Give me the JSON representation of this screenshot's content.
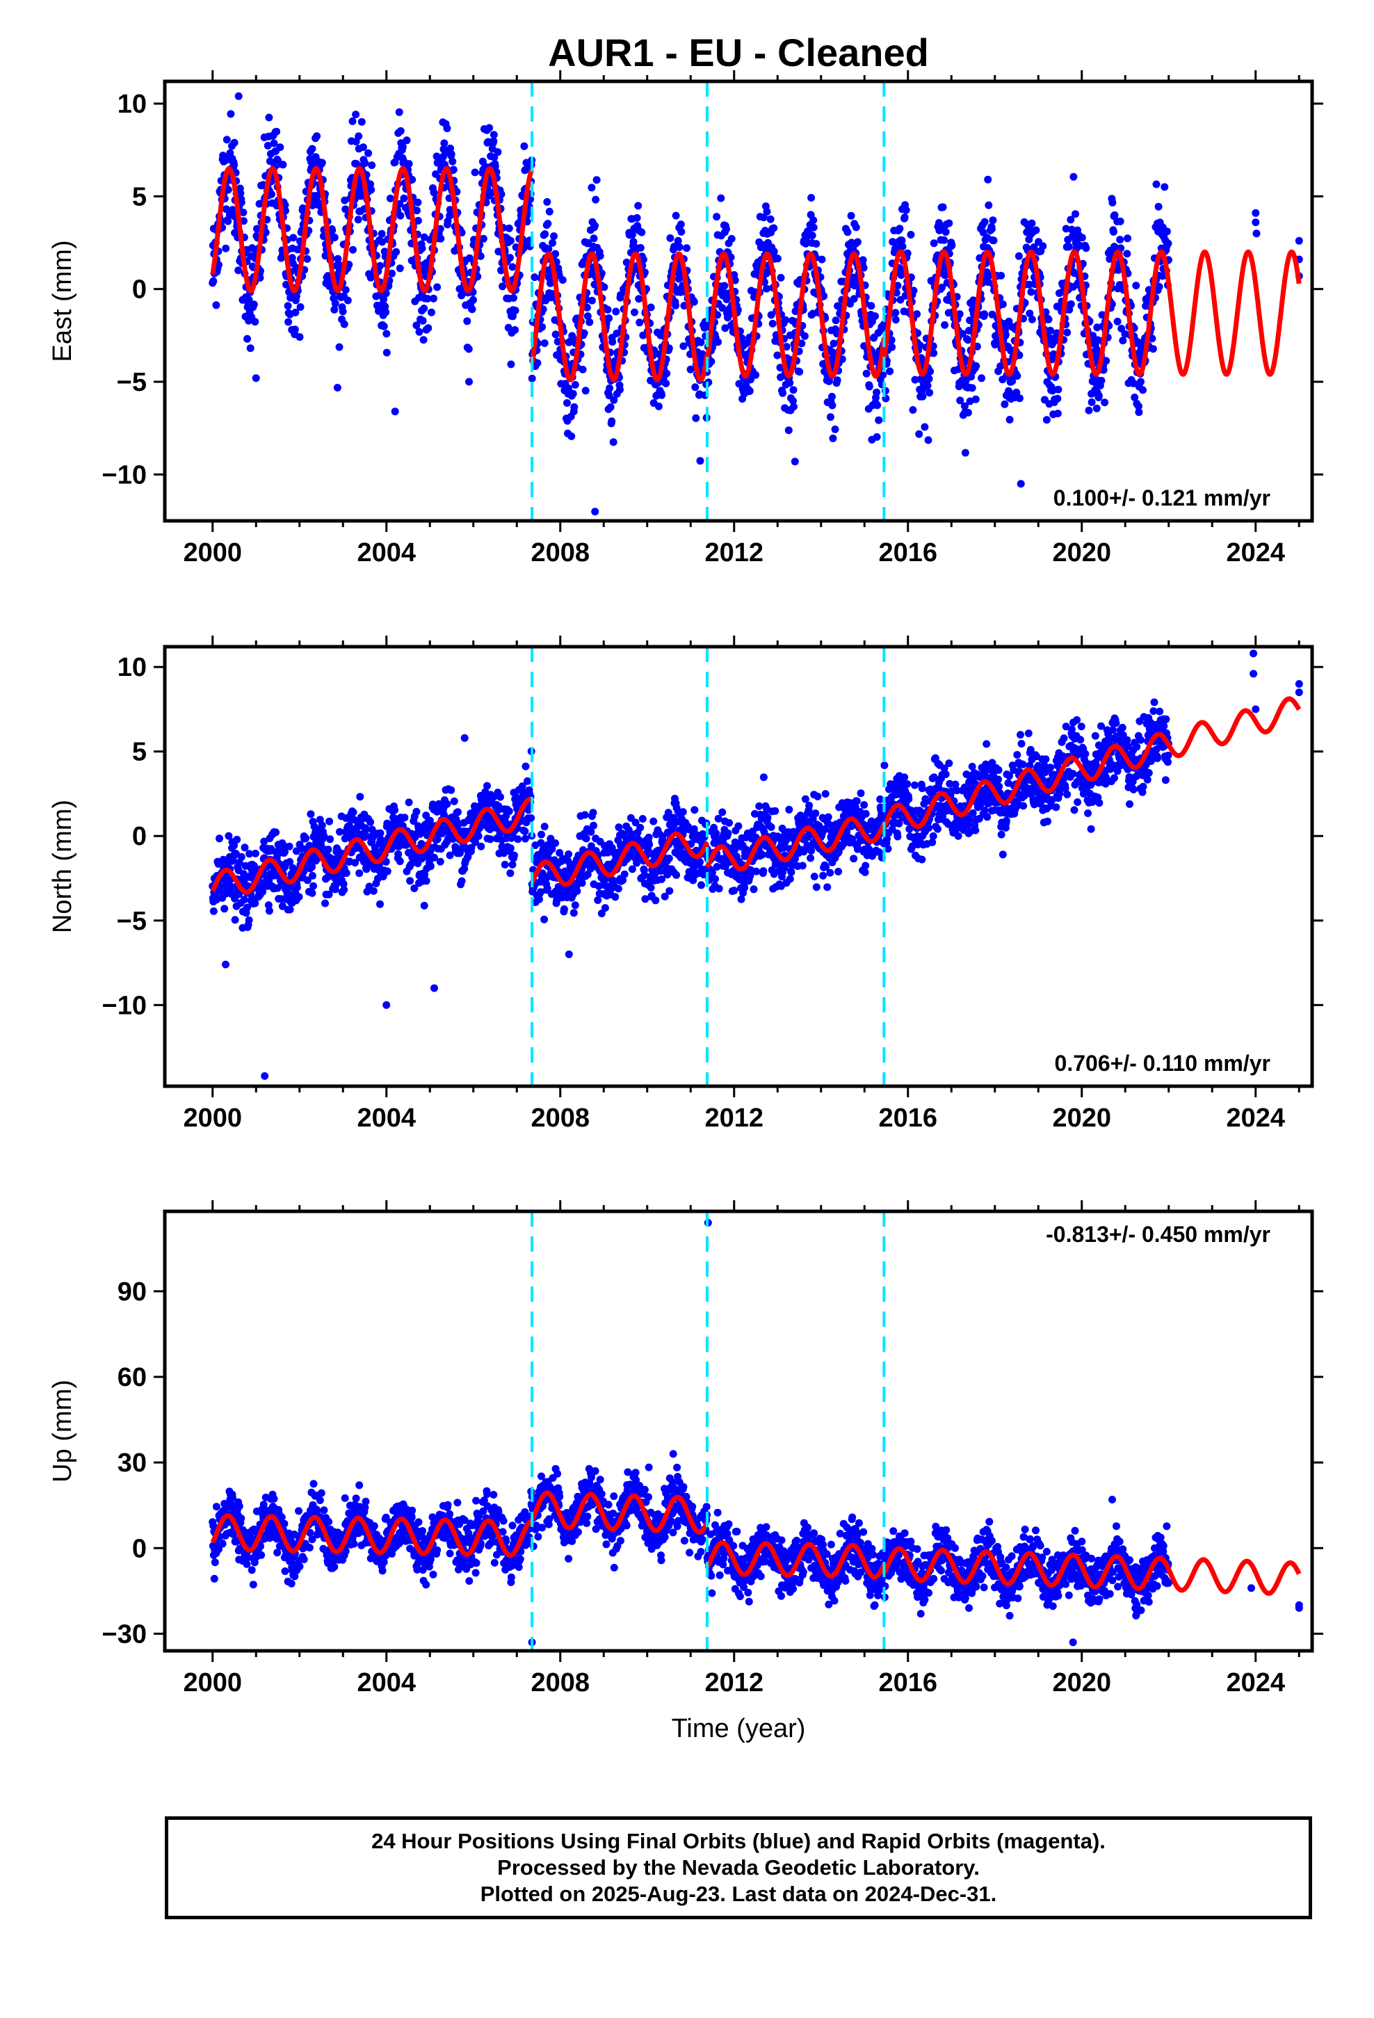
{
  "title": "AUR1  - EU - Cleaned",
  "footer": {
    "line1": "24 Hour Positions Using Final Orbits (blue) and Rapid Orbits (magenta).",
    "line2": "Processed by the Nevada Geodetic Laboratory.",
    "line3": "Plotted on 2025-Aug-23. Last data on 2024-Dec-31."
  },
  "colors": {
    "data": "#0000ff",
    "model": "#ff0000",
    "steps": "#00e5ff",
    "frame": "#000000"
  },
  "chart_data": [
    {
      "type": "scatter",
      "component": "east",
      "ylabel": "East (mm)",
      "xlabel": "",
      "xlim": [
        1998.9,
        2025.3
      ],
      "ylim": [
        -12.5,
        11.2
      ],
      "xticks": [
        2000,
        2004,
        2008,
        2012,
        2016,
        2020,
        2024
      ],
      "yticks": [
        -10,
        -5,
        0,
        5,
        10
      ],
      "rate_text": "0.100+/- 0.121 mm/yr",
      "rate_position": "bottom-right",
      "step_lines": [
        2007.35,
        2011.38,
        2015.45
      ],
      "data_start": 2000.0,
      "data_end": 2022.0,
      "late_points": [
        {
          "x": 2024.0,
          "y": 4.1
        },
        {
          "x": 2024.0,
          "y": 3.6
        },
        {
          "x": 2024.02,
          "y": 3.0
        },
        {
          "x": 2025.0,
          "y": 2.6
        },
        {
          "x": 2025.0,
          "y": 1.6
        },
        {
          "x": 2025.0,
          "y": 0.7
        }
      ],
      "model": {
        "segments": [
          {
            "x0": 2000.0,
            "x1": 2007.35,
            "offset": 3.2,
            "rate": 0.0,
            "amp": 3.3,
            "phase_yr": 0.38
          },
          {
            "x0": 2007.35,
            "x1": 2011.38,
            "offset": -1.5,
            "rate": 0.0,
            "amp": 3.4,
            "phase_yr": 0.38
          },
          {
            "x0": 2011.38,
            "x1": 2015.45,
            "offset": -1.4,
            "rate": 0.0,
            "amp": 3.3,
            "phase_yr": 0.38
          },
          {
            "x0": 2015.45,
            "x1": 2025.0,
            "offset": -1.3,
            "rate": 0.0,
            "amp": 3.3,
            "phase_yr": 0.38
          }
        ]
      },
      "scatter_sigma": 1.5,
      "outliers": [
        {
          "x": 2000.6,
          "y": 10.4
        },
        {
          "x": 2008.8,
          "y": -12.0
        },
        {
          "x": 2004.2,
          "y": -6.6
        },
        {
          "x": 2013.4,
          "y": -9.3
        },
        {
          "x": 2018.6,
          "y": -10.5
        },
        {
          "x": 2001.0,
          "y": -4.8
        },
        {
          "x": 2005.9,
          "y": -5.0
        }
      ]
    },
    {
      "type": "scatter",
      "component": "north",
      "ylabel": "North (mm)",
      "xlabel": "",
      "xlim": [
        1998.9,
        2025.3
      ],
      "ylim": [
        -14.8,
        11.2
      ],
      "xticks": [
        2000,
        2004,
        2008,
        2012,
        2016,
        2020,
        2024
      ],
      "yticks": [
        -10,
        -5,
        0,
        5,
        10
      ],
      "rate_text": "0.706+/- 0.110 mm/yr",
      "rate_position": "bottom-right",
      "step_lines": [
        2007.35,
        2011.38,
        2015.45
      ],
      "data_start": 2000.0,
      "data_end": 2022.0,
      "late_points": [
        {
          "x": 2023.95,
          "y": 10.8
        },
        {
          "x": 2023.95,
          "y": 9.6
        },
        {
          "x": 2024.0,
          "y": 7.5
        },
        {
          "x": 2025.0,
          "y": 9.0
        },
        {
          "x": 2025.0,
          "y": 8.5
        }
      ],
      "model": {
        "segments": [
          {
            "x0": 2000.0,
            "x1": 2007.35,
            "offset": -3.0,
            "rate": 0.6,
            "amp": 0.8,
            "phase_yr": 0.3
          },
          {
            "x0": 2007.35,
            "x1": 2011.38,
            "offset": -2.5,
            "rate": 0.55,
            "amp": 0.8,
            "phase_yr": 0.3
          },
          {
            "x0": 2011.38,
            "x1": 2015.45,
            "offset": -1.6,
            "rate": 0.55,
            "amp": 0.8,
            "phase_yr": 0.3
          },
          {
            "x0": 2015.45,
            "x1": 2025.0,
            "offset": 0.8,
            "rate": 0.7,
            "amp": 0.8,
            "phase_yr": 0.3
          }
        ]
      },
      "scatter_sigma": 1.0,
      "outliers": [
        {
          "x": 2001.2,
          "y": -14.2
        },
        {
          "x": 2004.0,
          "y": -10.0
        },
        {
          "x": 2005.1,
          "y": -9.0
        },
        {
          "x": 2000.3,
          "y": -7.6
        },
        {
          "x": 2008.2,
          "y": -7.0
        },
        {
          "x": 2005.8,
          "y": 5.8
        }
      ]
    },
    {
      "type": "scatter",
      "component": "up",
      "ylabel": "Up (mm)",
      "xlabel": "Time (year)",
      "xlim": [
        1998.9,
        2025.3
      ],
      "ylim": [
        -36,
        118
      ],
      "xticks": [
        2000,
        2004,
        2008,
        2012,
        2016,
        2020,
        2024
      ],
      "yticks": [
        -30,
        0,
        30,
        60,
        90
      ],
      "rate_text": "-0.813+/- 0.450 mm/yr",
      "rate_position": "top-right",
      "step_lines": [
        2007.35,
        2011.38,
        2015.45
      ],
      "data_start": 2000.0,
      "data_end": 2022.0,
      "late_points": [
        {
          "x": 2023.9,
          "y": -14
        },
        {
          "x": 2025.0,
          "y": -20
        },
        {
          "x": 2025.0,
          "y": -21
        }
      ],
      "model": {
        "segments": [
          {
            "x0": 2000.0,
            "x1": 2007.35,
            "offset": 5.5,
            "rate": -0.3,
            "amp": 6.0,
            "phase_yr": 0.35
          },
          {
            "x0": 2007.35,
            "x1": 2011.38,
            "offset": 13.5,
            "rate": -0.5,
            "amp": 6.0,
            "phase_yr": 0.35
          },
          {
            "x0": 2011.38,
            "x1": 2015.45,
            "offset": -3.5,
            "rate": -0.3,
            "amp": 5.5,
            "phase_yr": 0.35
          },
          {
            "x0": 2015.45,
            "x1": 2025.0,
            "offset": -5.5,
            "rate": -0.55,
            "amp": 5.5,
            "phase_yr": 0.35
          }
        ]
      },
      "scatter_sigma": 4.5,
      "outliers": [
        {
          "x": 2011.4,
          "y": 114
        },
        {
          "x": 2007.35,
          "y": -33
        },
        {
          "x": 2019.8,
          "y": -33
        },
        {
          "x": 2010.6,
          "y": 33
        },
        {
          "x": 2020.7,
          "y": 17
        }
      ]
    }
  ]
}
